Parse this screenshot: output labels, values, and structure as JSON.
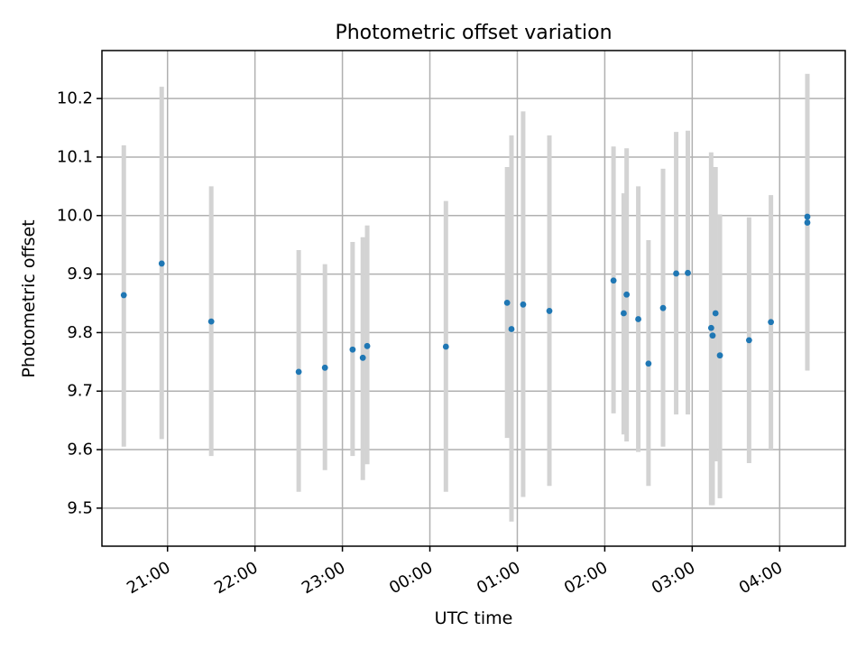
{
  "chart_data": {
    "type": "scatter",
    "title": "Photometric offset variation",
    "xlabel": "UTC time",
    "ylabel": "Photometric offset",
    "x_ticks": [
      "21:00",
      "22:00",
      "23:00",
      "00:00",
      "01:00",
      "02:00",
      "03:00",
      "04:00"
    ],
    "y_ticks": [
      "9.5",
      "9.6",
      "9.7",
      "9.8",
      "9.9",
      "10.0",
      "10.1",
      "10.2"
    ],
    "xlim": [
      "20:15",
      "04:45"
    ],
    "ylim": [
      9.435,
      10.282
    ],
    "grid": true,
    "colors": {
      "points": "#1f77b4",
      "errorbars": "#d3d3d3"
    },
    "series": [
      {
        "points": [
          {
            "time": "20:30",
            "offset": 9.864,
            "err_low": 9.605,
            "err_high": 10.12
          },
          {
            "time": "20:56",
            "offset": 9.918,
            "err_low": 9.618,
            "err_high": 10.22
          },
          {
            "time": "21:30",
            "offset": 9.819,
            "err_low": 9.589,
            "err_high": 10.05
          },
          {
            "time": "22:30",
            "offset": 9.733,
            "err_low": 9.528,
            "err_high": 9.941
          },
          {
            "time": "22:48",
            "offset": 9.74,
            "err_low": 9.565,
            "err_high": 9.917
          },
          {
            "time": "23:07",
            "offset": 9.771,
            "err_low": 9.589,
            "err_high": 9.955
          },
          {
            "time": "23:14",
            "offset": 9.757,
            "err_low": 9.548,
            "err_high": 9.963
          },
          {
            "time": "23:17",
            "offset": 9.777,
            "err_low": 9.575,
            "err_high": 9.983
          },
          {
            "time": "00:11",
            "offset": 9.776,
            "err_low": 9.528,
            "err_high": 10.025
          },
          {
            "time": "00:53",
            "offset": 9.851,
            "err_low": 9.62,
            "err_high": 10.083
          },
          {
            "time": "00:56",
            "offset": 9.806,
            "err_low": 9.477,
            "err_high": 10.137
          },
          {
            "time": "01:04",
            "offset": 9.848,
            "err_low": 9.519,
            "err_high": 10.178
          },
          {
            "time": "01:22",
            "offset": 9.837,
            "err_low": 9.538,
            "err_high": 10.137
          },
          {
            "time": "02:06",
            "offset": 9.889,
            "err_low": 9.662,
            "err_high": 10.118
          },
          {
            "time": "02:13",
            "offset": 9.833,
            "err_low": 9.626,
            "err_high": 10.038
          },
          {
            "time": "02:15",
            "offset": 9.865,
            "err_low": 9.614,
            "err_high": 10.115
          },
          {
            "time": "02:23",
            "offset": 9.823,
            "err_low": 9.596,
            "err_high": 10.05
          },
          {
            "time": "02:30",
            "offset": 9.747,
            "err_low": 9.538,
            "err_high": 9.958
          },
          {
            "time": "02:40",
            "offset": 9.842,
            "err_low": 9.605,
            "err_high": 10.08
          },
          {
            "time": "02:49",
            "offset": 9.901,
            "err_low": 9.66,
            "err_high": 10.143
          },
          {
            "time": "02:57",
            "offset": 9.902,
            "err_low": 9.66,
            "err_high": 10.145
          },
          {
            "time": "03:13",
            "offset": 9.808,
            "err_low": 9.505,
            "err_high": 10.108
          },
          {
            "time": "03:14",
            "offset": 9.795,
            "err_low": 9.505,
            "err_high": 10.083
          },
          {
            "time": "03:16",
            "offset": 9.833,
            "err_low": 9.58,
            "err_high": 10.083
          },
          {
            "time": "03:19",
            "offset": 9.761,
            "err_low": 9.517,
            "err_high": 10.002
          },
          {
            "time": "03:39",
            "offset": 9.787,
            "err_low": 9.577,
            "err_high": 9.997
          },
          {
            "time": "03:54",
            "offset": 9.818,
            "err_low": 9.6,
            "err_high": 10.035
          },
          {
            "time": "04:19",
            "offset": 9.998,
            "err_low": 9.735,
            "err_high": 10.242
          },
          {
            "time": "04:19",
            "offset": 9.988,
            "err_low": 9.735,
            "err_high": 10.242
          }
        ]
      }
    ]
  }
}
